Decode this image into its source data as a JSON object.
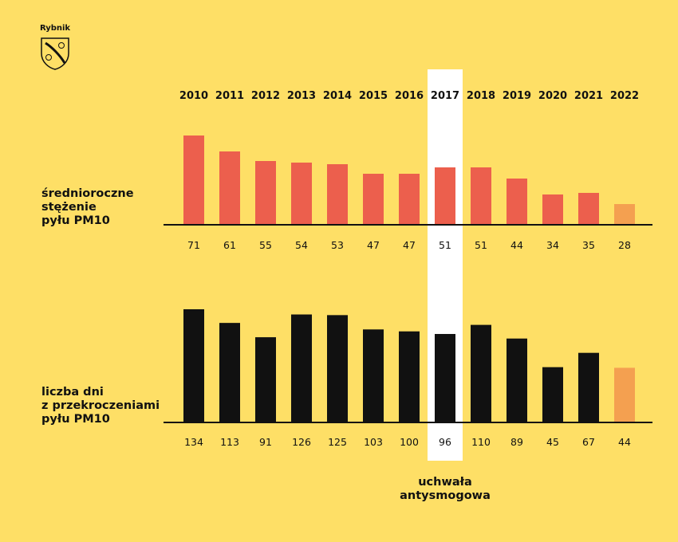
{
  "logo": {
    "text": "Rybnik",
    "icon": "coat-of-arms-fish-icon"
  },
  "highlight": {
    "year": "2017",
    "label_line1": "uchwała",
    "label_line2": "antysmogowa"
  },
  "colors": {
    "background": "#FEDF66",
    "bar_top": "#EC5F4D",
    "bar_bottom": "#111111",
    "bar_last": "#F4A050",
    "highlight": "#FFFFFF"
  },
  "chart_data": [
    {
      "type": "bar",
      "label_lines": [
        "średnioroczne",
        "stężenie",
        "pyłu PM10"
      ],
      "categories": [
        "2010",
        "2011",
        "2012",
        "2013",
        "2014",
        "2015",
        "2016",
        "2017",
        "2018",
        "2019",
        "2020",
        "2021",
        "2022"
      ],
      "values": [
        71,
        61,
        55,
        54,
        53,
        47,
        47,
        51,
        51,
        44,
        34,
        35,
        28
      ],
      "ylim": [
        15,
        75
      ]
    },
    {
      "type": "bar",
      "label_lines": [
        "liczba dni",
        "z przekroczeniami",
        "pyłu PM10"
      ],
      "categories": [
        "2010",
        "2011",
        "2012",
        "2013",
        "2014",
        "2015",
        "2016",
        "2017",
        "2018",
        "2019",
        "2020",
        "2021",
        "2022"
      ],
      "values": [
        134,
        113,
        91,
        126,
        125,
        103,
        100,
        96,
        110,
        89,
        45,
        67,
        44
      ],
      "ylim": [
        -40,
        140
      ]
    }
  ]
}
